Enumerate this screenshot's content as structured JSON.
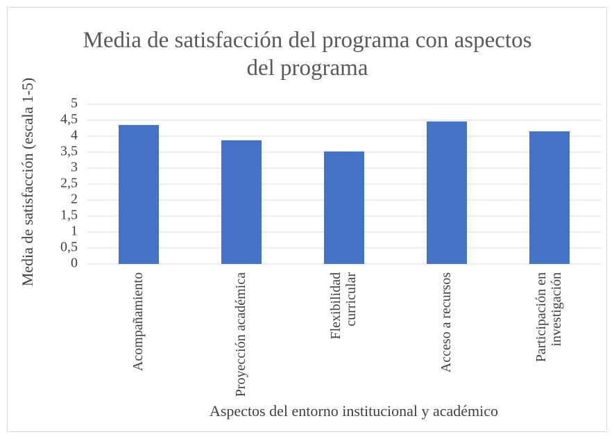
{
  "chart_data": {
    "type": "bar",
    "title": "Media de satisfacción del programa con aspectos del programa",
    "xlabel": "Aspectos del entorno institucional y académico",
    "ylabel": "Media de satisfacción (escala 1-5)",
    "categories": [
      "Acompañamiento",
      "Proyección académica",
      "Flexibilidad curricular",
      "Acceso a recursos",
      "Participación en investigación"
    ],
    "values": [
      4.35,
      3.87,
      3.52,
      4.46,
      4.15
    ],
    "color": "#4472c4",
    "ylim": [
      0,
      5
    ],
    "yticks": [
      0,
      {
        "value": 0.5,
        "label": "0,5"
      },
      1,
      {
        "value": 1.5,
        "label": "1,5"
      },
      2,
      {
        "value": 2.5,
        "label": "2,5"
      },
      3,
      {
        "value": 3.5,
        "label": "3,5"
      },
      4,
      {
        "value": 4.5,
        "label": "4,5"
      },
      5
    ],
    "grid": true
  }
}
